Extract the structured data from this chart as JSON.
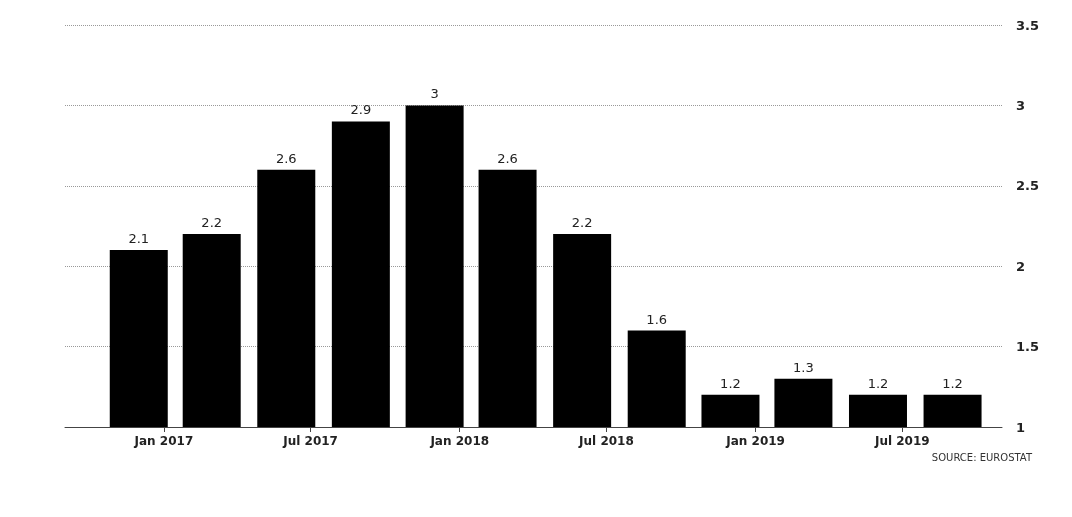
{
  "chart_data": {
    "type": "bar",
    "x": [
      "2016-12",
      "2017-03",
      "2017-06",
      "2017-09",
      "2017-12",
      "2018-03",
      "2018-06",
      "2018-09",
      "2018-12",
      "2019-03",
      "2019-06",
      "2019-09"
    ],
    "values": [
      2.1,
      2.2,
      2.6,
      2.9,
      3,
      2.6,
      2.2,
      1.6,
      1.2,
      1.3,
      1.2,
      1.2
    ],
    "color": "#000000",
    "xlim": [
      "2016-09",
      "2019-11"
    ],
    "xticks": [
      {
        "value": "2017-01",
        "label": "Jan 2017"
      },
      {
        "value": "2017-07",
        "label": "Jul 2017"
      },
      {
        "value": "2018-01",
        "label": "Jan 2018"
      },
      {
        "value": "2018-07",
        "label": "Jul 2018"
      },
      {
        "value": "2019-01",
        "label": "Jan 2019"
      },
      {
        "value": "2019-07",
        "label": "Jul 2019"
      }
    ],
    "ylim": [
      1,
      3.5
    ],
    "yticks": [
      1,
      1.5,
      2,
      2.5,
      3,
      3.5
    ],
    "grid": "y",
    "data_labels": true,
    "annotations": [
      "SOURCE: EUROSTAT"
    ]
  }
}
